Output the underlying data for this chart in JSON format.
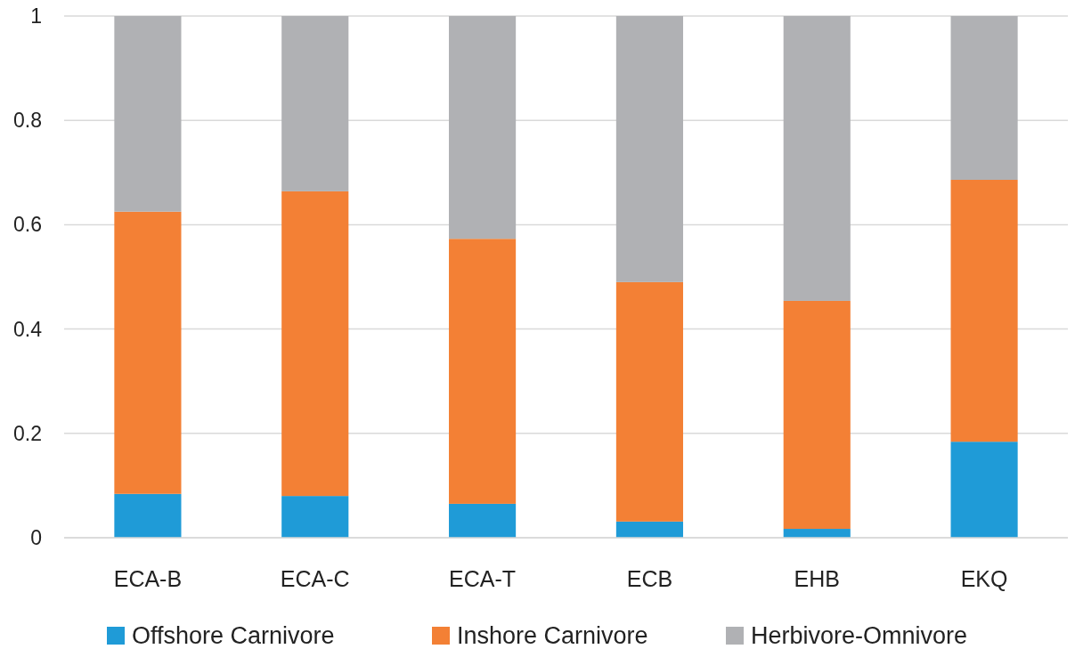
{
  "chart_data": {
    "type": "bar",
    "stacked": true,
    "categories": [
      "ECA-B",
      "ECA-C",
      "ECA-T",
      "ECB",
      "EHB",
      "EKQ"
    ],
    "series": [
      {
        "name": "Offshore Carnivore",
        "color": "#1f9bd7",
        "values": [
          0.084,
          0.08,
          0.065,
          0.031,
          0.017,
          0.184
        ]
      },
      {
        "name": "Inshore Carnivore",
        "color": "#f38035",
        "values": [
          0.541,
          0.584,
          0.508,
          0.459,
          0.437,
          0.502
        ]
      },
      {
        "name": "Herbivore-Omnivore",
        "color": "#b0b1b4",
        "values": [
          0.375,
          0.336,
          0.427,
          0.51,
          0.546,
          0.314
        ]
      }
    ],
    "ylim": [
      0,
      1
    ],
    "yticks": [
      0,
      0.2,
      0.4,
      0.6,
      0.8,
      1
    ],
    "grid": "y",
    "legend": "bottom"
  }
}
